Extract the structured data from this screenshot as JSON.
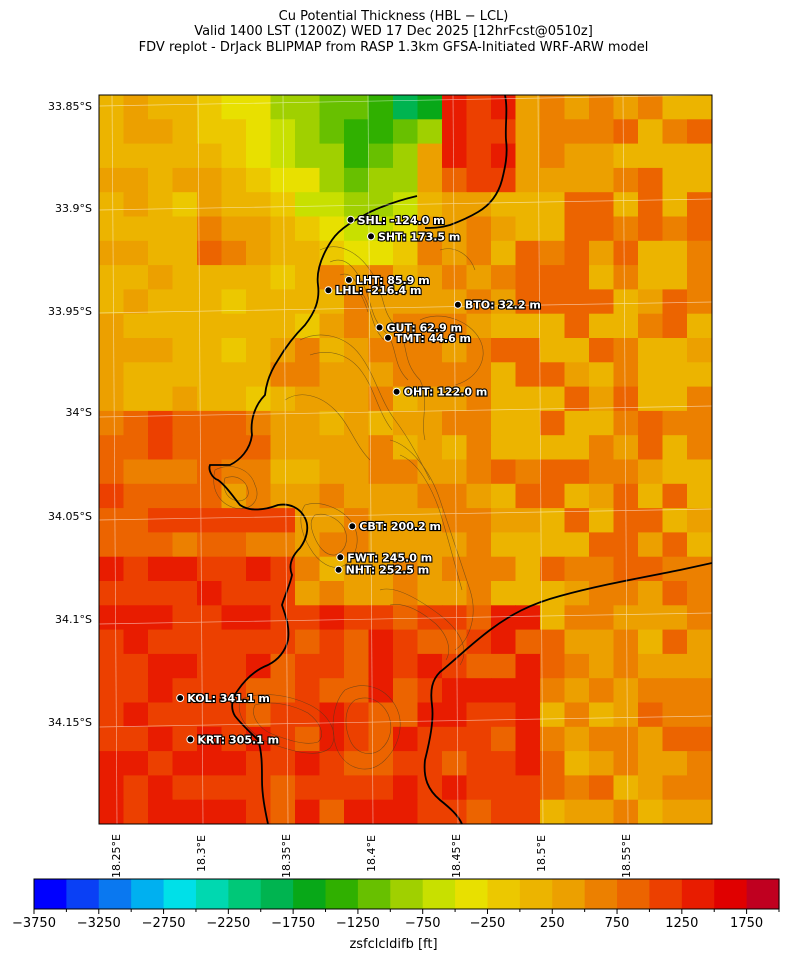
{
  "title": {
    "line1": "Cu Potential Thickness (HBL − LCL)",
    "line2": "Valid 1400 LST (1200Z) WED 17 Dec 2025 [12hrFcst@0510z]",
    "line3": "FDV replot - DrJack BLIPMAP from RASP 1.3km GFSA-Initiated WRF-ARW model"
  },
  "axes": {
    "lat_ticks": [
      "33.85°S",
      "33.9°S",
      "33.95°S",
      "34°S",
      "34.05°S",
      "34.1°S",
      "34.15°S"
    ],
    "lon_ticks": [
      "18.25°E",
      "18.3°E",
      "18.35°E",
      "18.4°E",
      "18.45°E",
      "18.5°E",
      "18.55°E"
    ]
  },
  "stations": [
    {
      "label": "SHL: -124.0 m",
      "lon": 18.39,
      "lat": -33.905
    },
    {
      "label": "SHT: 173.5 m",
      "lon": 18.402,
      "lat": -33.913
    },
    {
      "label": "LHT: 85.9 m",
      "lon": 18.389,
      "lat": -33.934
    },
    {
      "label": "LHL: -216.4 m",
      "lon": 18.377,
      "lat": -33.939
    },
    {
      "label": "BTO: 32.2 m",
      "lon": 18.453,
      "lat": -33.946
    },
    {
      "label": "GUT: 62.9 m",
      "lon": 18.407,
      "lat": -33.957
    },
    {
      "label": "TMT: 44.6 m",
      "lon": 18.412,
      "lat": -33.962
    },
    {
      "label": "OHT: 122.0 m",
      "lon": 18.417,
      "lat": -33.988
    },
    {
      "label": "CBT: 200.2 m",
      "lon": 18.391,
      "lat": -34.053
    },
    {
      "label": "FWT: 245.0 m",
      "lon": 18.384,
      "lat": -34.068
    },
    {
      "label": "NHT: 252.5 m",
      "lon": 18.383,
      "lat": -34.074
    },
    {
      "label": "KOL: 341.1 m",
      "lon": 18.29,
      "lat": -34.136
    },
    {
      "label": "KRT: 305.1 m",
      "lon": 18.296,
      "lat": -34.156
    }
  ],
  "colorbar": {
    "min": -3750,
    "max": 2000,
    "step": 250,
    "ticks": [
      "−3750",
      "−3250",
      "−2750",
      "−2250",
      "−1750",
      "−1250",
      "−750",
      "−250",
      "250",
      "750",
      "1250",
      "1750"
    ],
    "label": "zsfclcldifb [ft]",
    "colors": [
      "#0000ff",
      "#0a40f5",
      "#0a78f0",
      "#00b0f0",
      "#00e0e8",
      "#00d8b0",
      "#00c878",
      "#00b450",
      "#08a818",
      "#30b000",
      "#68c000",
      "#a0d000",
      "#c8e000",
      "#e8e000",
      "#ecc800",
      "#ecb400",
      "#eca000",
      "#ec8000",
      "#ec6400",
      "#ec4000",
      "#e81c00",
      "#e00000",
      "#c00020"
    ]
  },
  "map": {
    "description_colors": {
      "ocean_high": "#e8b800",
      "land_high": "#e84000",
      "coast": "#000000"
    }
  }
}
